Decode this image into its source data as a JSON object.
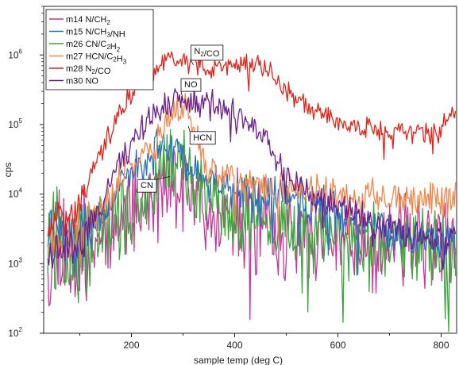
{
  "chart_data": {
    "type": "line",
    "xlabel": "sample temp (deg C)",
    "ylabel": "cps",
    "xlim": [
      30,
      830
    ],
    "ylim": [
      100,
      5000000
    ],
    "yscale": "log",
    "xticks": [
      200,
      400,
      600,
      800
    ],
    "yticks": [
      {
        "value": 100,
        "base": "10",
        "exp": "2"
      },
      {
        "value": 1000,
        "base": "10",
        "exp": "3"
      },
      {
        "value": 10000,
        "base": "10",
        "exp": "4"
      },
      {
        "value": 100000,
        "base": "10",
        "exp": "5"
      },
      {
        "value": 1000000,
        "base": "10",
        "exp": "6"
      }
    ],
    "grid": false,
    "legend_position": "top-left",
    "series": [
      {
        "name": "m14 N/CH2",
        "name_parts": [
          [
            "m14 N/CH",
            ""
          ],
          [
            "2",
            "sub"
          ]
        ],
        "color": "#c8369a",
        "points": [
          [
            40,
            2000
          ],
          [
            60,
            2500
          ],
          [
            80,
            1500
          ],
          [
            100,
            1200
          ],
          [
            120,
            2500
          ],
          [
            140,
            3000
          ],
          [
            160,
            4000
          ],
          [
            180,
            5000
          ],
          [
            200,
            6000
          ],
          [
            220,
            7000
          ],
          [
            240,
            9000
          ],
          [
            260,
            11000
          ],
          [
            280,
            13000
          ],
          [
            290,
            14000
          ],
          [
            300,
            12000
          ],
          [
            320,
            9000
          ],
          [
            340,
            7000
          ],
          [
            360,
            5500
          ],
          [
            380,
            4500
          ],
          [
            400,
            4000
          ],
          [
            430,
            3500
          ],
          [
            460,
            3000
          ],
          [
            490,
            2700
          ],
          [
            520,
            2500
          ],
          [
            550,
            2300
          ],
          [
            580,
            2200
          ],
          [
            610,
            2200
          ],
          [
            640,
            2100
          ],
          [
            670,
            2100
          ],
          [
            700,
            2100
          ],
          [
            730,
            2000
          ],
          [
            760,
            2000
          ],
          [
            790,
            2000
          ],
          [
            820,
            1800
          ]
        ],
        "noise": 0.55,
        "seed": 11
      },
      {
        "name": "m15 N/CH3/NH",
        "name_parts": [
          [
            "m15 N/CH",
            ""
          ],
          [
            "3",
            "sub"
          ],
          [
            "/NH",
            ""
          ]
        ],
        "color": "#2a6fc0",
        "points": [
          [
            40,
            2500
          ],
          [
            60,
            3000
          ],
          [
            80,
            2000
          ],
          [
            100,
            2000
          ],
          [
            120,
            3500
          ],
          [
            140,
            5000
          ],
          [
            160,
            9000
          ],
          [
            180,
            16000
          ],
          [
            200,
            22000
          ],
          [
            220,
            30000
          ],
          [
            240,
            38000
          ],
          [
            260,
            44000
          ],
          [
            280,
            45000
          ],
          [
            300,
            36000
          ],
          [
            320,
            25000
          ],
          [
            340,
            18000
          ],
          [
            360,
            15000
          ],
          [
            380,
            13000
          ],
          [
            400,
            12000
          ],
          [
            430,
            11000
          ],
          [
            460,
            10000
          ],
          [
            490,
            9000
          ],
          [
            520,
            8000
          ],
          [
            550,
            7000
          ],
          [
            580,
            6000
          ],
          [
            610,
            5000
          ],
          [
            640,
            4200
          ],
          [
            670,
            3600
          ],
          [
            700,
            3000
          ],
          [
            730,
            2600
          ],
          [
            760,
            2300
          ],
          [
            790,
            2100
          ],
          [
            820,
            2000
          ]
        ],
        "noise": 0.25,
        "seed": 22
      },
      {
        "name": "m26 CN/C2H2",
        "name_parts": [
          [
            "m26 CN/C",
            ""
          ],
          [
            "2",
            "sub"
          ],
          [
            "H",
            ""
          ],
          [
            "2",
            "sub"
          ]
        ],
        "color": "#3aa83a",
        "points": [
          [
            40,
            1500
          ],
          [
            60,
            2000
          ],
          [
            80,
            1200
          ],
          [
            100,
            1300
          ],
          [
            120,
            2500
          ],
          [
            140,
            3500
          ],
          [
            160,
            4500
          ],
          [
            180,
            5500
          ],
          [
            200,
            7000
          ],
          [
            220,
            9000
          ],
          [
            240,
            13000
          ],
          [
            260,
            19000
          ],
          [
            280,
            25000
          ],
          [
            290,
            27000
          ],
          [
            300,
            20000
          ],
          [
            320,
            12000
          ],
          [
            340,
            9000
          ],
          [
            360,
            7000
          ],
          [
            380,
            6000
          ],
          [
            400,
            5500
          ],
          [
            430,
            5000
          ],
          [
            460,
            4500
          ],
          [
            490,
            4000
          ],
          [
            520,
            3500
          ],
          [
            550,
            3000
          ],
          [
            580,
            2600
          ],
          [
            610,
            2300
          ],
          [
            640,
            2100
          ],
          [
            670,
            2000
          ],
          [
            700,
            2000
          ],
          [
            730,
            1900
          ],
          [
            760,
            1800
          ],
          [
            790,
            1800
          ],
          [
            820,
            1700
          ]
        ],
        "noise": 0.5,
        "seed": 33
      },
      {
        "name": "m27 HCN/C2H3",
        "name_parts": [
          [
            "m27 HCN/C",
            ""
          ],
          [
            "2",
            "sub"
          ],
          [
            "H",
            ""
          ],
          [
            "3",
            "sub"
          ]
        ],
        "color": "#f0874a",
        "points": [
          [
            40,
            2500
          ],
          [
            60,
            3000
          ],
          [
            80,
            2000
          ],
          [
            100,
            2500
          ],
          [
            120,
            4000
          ],
          [
            140,
            6000
          ],
          [
            160,
            10000
          ],
          [
            180,
            17000
          ],
          [
            200,
            25000
          ],
          [
            220,
            35000
          ],
          [
            240,
            50000
          ],
          [
            260,
            80000
          ],
          [
            280,
            150000
          ],
          [
            295,
            200000
          ],
          [
            305,
            170000
          ],
          [
            320,
            80000
          ],
          [
            335,
            35000
          ],
          [
            350,
            22000
          ],
          [
            370,
            18000
          ],
          [
            390,
            16000
          ],
          [
            420,
            14000
          ],
          [
            450,
            13000
          ],
          [
            480,
            12000
          ],
          [
            510,
            11000
          ],
          [
            540,
            10500
          ],
          [
            570,
            10000
          ],
          [
            600,
            9500
          ],
          [
            630,
            9000
          ],
          [
            660,
            9000
          ],
          [
            690,
            8500
          ],
          [
            720,
            8500
          ],
          [
            750,
            8500
          ],
          [
            780,
            8500
          ],
          [
            810,
            8000
          ],
          [
            825,
            8500
          ]
        ],
        "noise": 0.22,
        "seed": 44
      },
      {
        "name": "m28 N2/CO",
        "name_parts": [
          [
            "m28 N",
            ""
          ],
          [
            "2",
            "sub"
          ],
          [
            "/CO",
            ""
          ]
        ],
        "color": "#e0241c",
        "points": [
          [
            40,
            3000
          ],
          [
            60,
            5000
          ],
          [
            80,
            4000
          ],
          [
            100,
            8000
          ],
          [
            120,
            20000
          ],
          [
            140,
            40000
          ],
          [
            160,
            80000
          ],
          [
            180,
            150000
          ],
          [
            200,
            280000
          ],
          [
            220,
            450000
          ],
          [
            240,
            650000
          ],
          [
            260,
            800000
          ],
          [
            280,
            850000
          ],
          [
            300,
            820000
          ],
          [
            320,
            730000
          ],
          [
            340,
            690000
          ],
          [
            360,
            700000
          ],
          [
            380,
            730000
          ],
          [
            400,
            760000
          ],
          [
            420,
            760000
          ],
          [
            440,
            720000
          ],
          [
            460,
            620000
          ],
          [
            480,
            450000
          ],
          [
            500,
            300000
          ],
          [
            520,
            220000
          ],
          [
            540,
            180000
          ],
          [
            560,
            150000
          ],
          [
            580,
            125000
          ],
          [
            600,
            110000
          ],
          [
            620,
            95000
          ],
          [
            640,
            88000
          ],
          [
            660,
            85000
          ],
          [
            680,
            82000
          ],
          [
            700,
            80000
          ],
          [
            720,
            78000
          ],
          [
            740,
            76000
          ],
          [
            760,
            74000
          ],
          [
            780,
            75000
          ],
          [
            795,
            85000
          ],
          [
            805,
            110000
          ],
          [
            815,
            130000
          ],
          [
            825,
            120000
          ]
        ],
        "noise": 0.14,
        "seed": 55
      },
      {
        "name": "m30 NO",
        "name_parts": [
          [
            "m30 NO",
            ""
          ]
        ],
        "color": "#6b1f8c",
        "points": [
          [
            40,
            1500
          ],
          [
            60,
            2000
          ],
          [
            80,
            1500
          ],
          [
            100,
            2000
          ],
          [
            120,
            4000
          ],
          [
            140,
            8000
          ],
          [
            160,
            16000
          ],
          [
            180,
            30000
          ],
          [
            200,
            55000
          ],
          [
            220,
            90000
          ],
          [
            240,
            140000
          ],
          [
            260,
            180000
          ],
          [
            280,
            210000
          ],
          [
            300,
            220000
          ],
          [
            320,
            210000
          ],
          [
            340,
            200000
          ],
          [
            360,
            190000
          ],
          [
            380,
            175000
          ],
          [
            400,
            150000
          ],
          [
            420,
            120000
          ],
          [
            440,
            90000
          ],
          [
            460,
            60000
          ],
          [
            480,
            35000
          ],
          [
            500,
            20000
          ],
          [
            520,
            14000
          ],
          [
            540,
            11000
          ],
          [
            560,
            9000
          ],
          [
            580,
            8000
          ],
          [
            600,
            7000
          ],
          [
            620,
            6000
          ],
          [
            640,
            5000
          ],
          [
            660,
            4200
          ],
          [
            680,
            3700
          ],
          [
            700,
            3300
          ],
          [
            720,
            3000
          ],
          [
            740,
            2700
          ],
          [
            760,
            2500
          ],
          [
            780,
            2400
          ],
          [
            800,
            2300
          ],
          [
            820,
            2200
          ]
        ],
        "noise": 0.18,
        "seed": 66
      }
    ],
    "annotations": [
      {
        "name": "anno-n2-co",
        "parts": [
          [
            "N",
            ""
          ],
          [
            "2",
            "sub"
          ],
          [
            "/CO",
            ""
          ]
        ],
        "box_x": 346,
        "box_y": 1150000,
        "point_x": 320,
        "point_y": 720000
      },
      {
        "name": "anno-no",
        "parts": [
          [
            "NO",
            ""
          ]
        ],
        "box_x": 315,
        "box_y": 380000,
        "point_x": 300,
        "point_y": 225000
      },
      {
        "name": "anno-hcn",
        "parts": [
          [
            "HCN",
            ""
          ]
        ],
        "box_x": 338,
        "box_y": 66000,
        "point_x": 310,
        "point_y": 95000
      },
      {
        "name": "anno-cn",
        "parts": [
          [
            "CN",
            ""
          ]
        ],
        "box_x": 230,
        "box_y": 13500,
        "point_x": 275,
        "point_y": 18000
      }
    ]
  }
}
